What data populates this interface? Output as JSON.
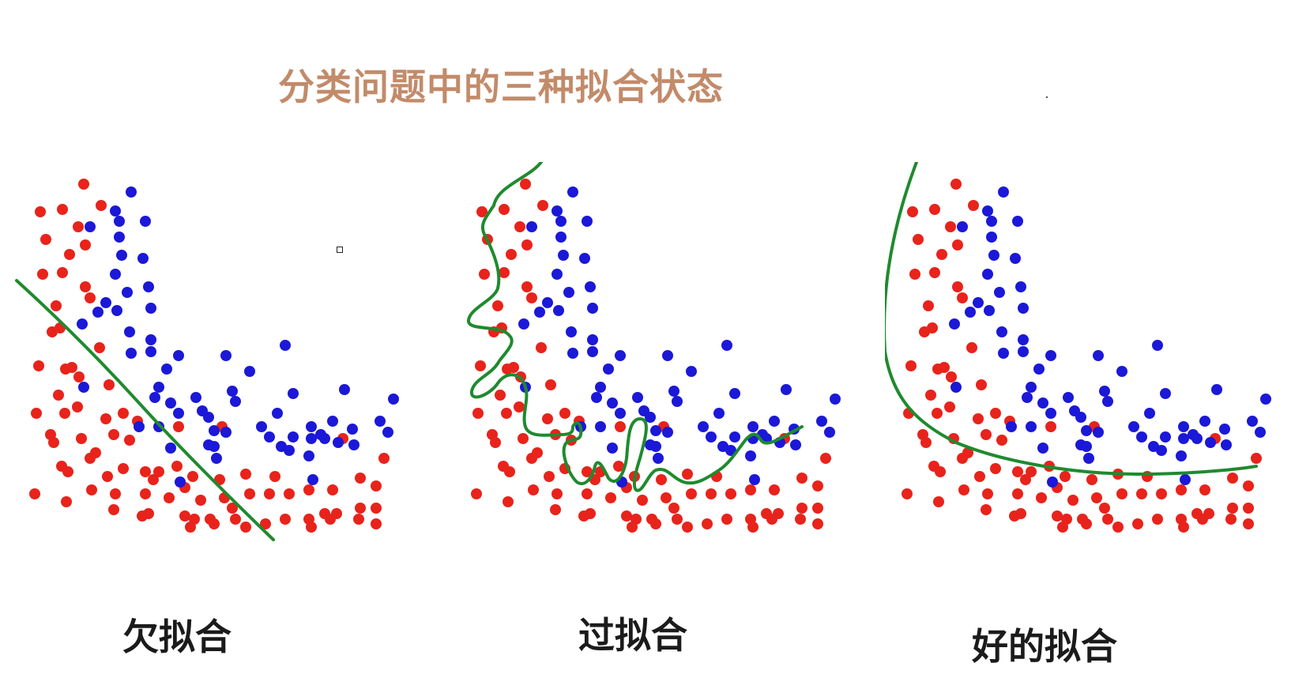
{
  "title": "分类问题中的三种拟合状态",
  "panels": [
    {
      "id": "under",
      "caption": "欠拟合"
    },
    {
      "id": "over",
      "caption": "过拟合"
    },
    {
      "id": "good",
      "caption": "好的拟合"
    }
  ],
  "colors": {
    "title": "#c28b6a",
    "class_a": "#e8231b",
    "class_b": "#1b18d8",
    "boundary": "#1f8a2e"
  }
}
